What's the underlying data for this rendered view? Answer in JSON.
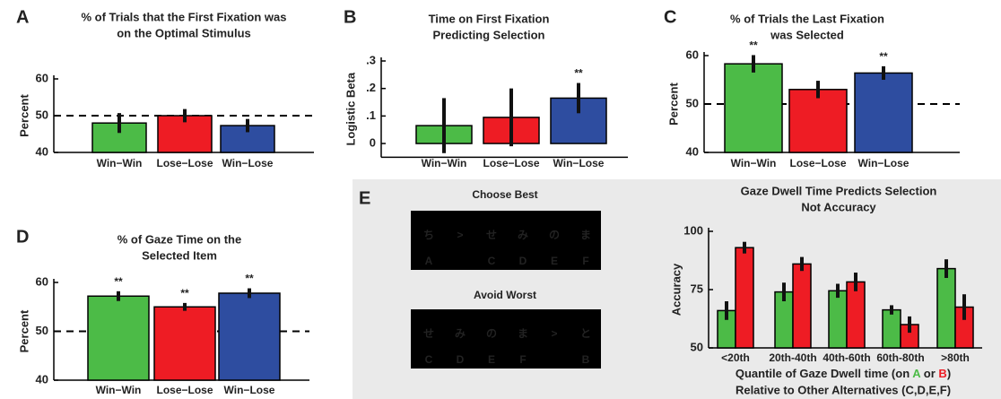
{
  "panels": [
    "A",
    "B",
    "C",
    "D",
    "E"
  ],
  "chart_data": [
    {
      "type": "bar",
      "title": [
        "% of Trials that the First Fixation was",
        "on the Optimal Stimulus"
      ],
      "ylabel": "Percent",
      "categories": [
        "Win−Win",
        "Lose−Lose",
        "Win−Lose"
      ],
      "values": [
        48,
        50,
        47.3
      ],
      "errors": [
        2.7,
        1.8,
        1.8
      ],
      "colors": [
        "#4cbb47",
        "#ee1c24",
        "#2e4da0"
      ],
      "ylim": [
        40,
        60
      ],
      "yticks": [
        40,
        50,
        60
      ],
      "hline": 50
    },
    {
      "type": "bar",
      "title": [
        "Time on First Fixation",
        "Predicting Selection"
      ],
      "ylabel": "Logistic Beta",
      "categories": [
        "Win−Win",
        "Lose−Lose",
        "Win−Lose"
      ],
      "values": [
        0.065,
        0.095,
        0.165
      ],
      "errors": [
        0.1,
        0.105,
        0.055
      ],
      "annotations": [
        null,
        null,
        "**"
      ],
      "colors": [
        "#4cbb47",
        "#ee1c24",
        "#2e4da0"
      ],
      "ylim": [
        -0.05,
        0.3
      ],
      "yticks": [
        0,
        {
          "value": 0.1,
          "label": ".1"
        },
        {
          "value": 0.2,
          "label": ".2"
        },
        {
          "value": 0.3,
          "label": ".3"
        }
      ]
    },
    {
      "type": "bar",
      "title": [
        "% of Trials the Last Fixation",
        "was Selected"
      ],
      "ylabel": "Percent",
      "categories": [
        "Win−Win",
        "Lose−Lose",
        "Win−Lose"
      ],
      "values": [
        58.3,
        53,
        56.4
      ],
      "errors": [
        1.8,
        1.8,
        1.4
      ],
      "annotations": [
        "**",
        null,
        "**"
      ],
      "colors": [
        "#4cbb47",
        "#ee1c24",
        "#2e4da0"
      ],
      "ylim": [
        40,
        60
      ],
      "yticks": [
        40,
        50,
        60
      ],
      "hline": 50
    },
    {
      "type": "bar",
      "title": [
        "% of Gaze Time on the",
        "Selected Item"
      ],
      "ylabel": "Percent",
      "categories": [
        "Win−Win",
        "Lose−Lose",
        "Win−Lose"
      ],
      "values": [
        57.2,
        55,
        57.8
      ],
      "errors": [
        1,
        0.8,
        1
      ],
      "annotations": [
        "**",
        "**",
        "**"
      ],
      "colors": [
        "#4cbb47",
        "#ee1c24",
        "#2e4da0"
      ],
      "ylim": [
        40,
        60
      ],
      "yticks": [
        40,
        50,
        60
      ],
      "hline": 50
    },
    {
      "type": "grouped-bar",
      "title": [
        "Gaze Dwell Time Predicts Selection",
        "Not Accuracy"
      ],
      "ylabel": "Accuracy",
      "xlabel": [
        [
          "Quantile of Gaze Dwell time (on ",
          "A",
          " or ",
          "B",
          ")"
        ],
        "Relative to Other Alternatives (C,D,E,F)"
      ],
      "categories": [
        "<20th",
        "20th-40th",
        "40th-60th",
        "60th-80th",
        ">80th"
      ],
      "series": [
        {
          "name": "A",
          "color": "#4cbb47",
          "values": [
            66,
            74,
            74.5,
            66.3,
            84
          ],
          "errors": [
            4,
            4,
            3,
            2,
            4
          ]
        },
        {
          "name": "B",
          "color": "#ee1c24",
          "values": [
            93,
            86,
            78.3,
            60,
            67.5
          ],
          "errors": [
            2.5,
            3,
            4,
            3.5,
            5.5
          ]
        }
      ],
      "ylim": [
        50,
        100
      ],
      "yticks": [
        50,
        75,
        100
      ]
    }
  ],
  "illustration": {
    "choose": {
      "title": "Choose Best",
      "glyphs": [
        "ち",
        ">",
        "せ",
        "み",
        "の",
        "ま"
      ],
      "letters": [
        "A",
        null,
        "C",
        "D",
        "E",
        "F"
      ]
    },
    "avoid": {
      "title": "Avoid Worst",
      "glyphs": [
        "せ",
        "み",
        "の",
        "ま",
        ">",
        "と"
      ],
      "letters": [
        "C",
        "D",
        "E",
        "F",
        null,
        "B"
      ]
    }
  }
}
